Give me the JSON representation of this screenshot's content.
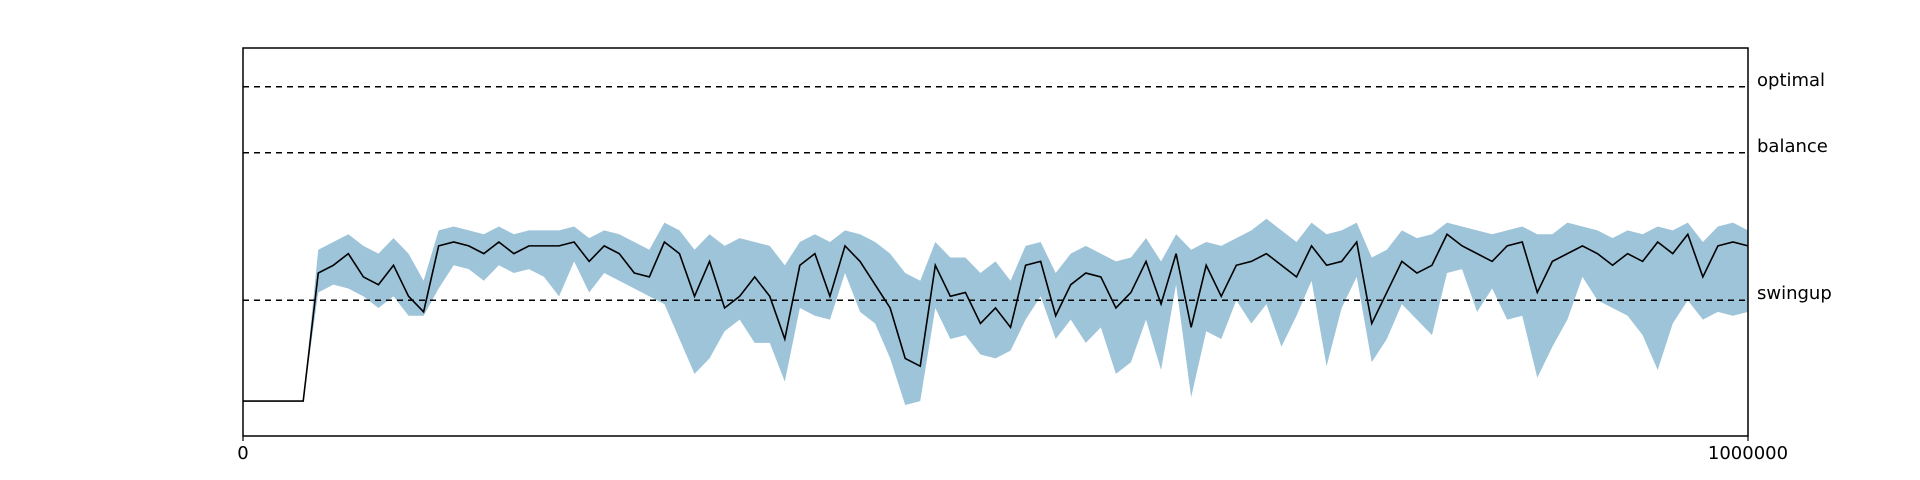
{
  "chart_data": {
    "type": "line",
    "x": [
      0,
      10000,
      20000,
      30000,
      40000,
      50000,
      60000,
      70000,
      80000,
      90000,
      100000,
      110000,
      120000,
      130000,
      140000,
      150000,
      160000,
      170000,
      180000,
      190000,
      200000,
      210000,
      220000,
      230000,
      240000,
      250000,
      260000,
      270000,
      280000,
      290000,
      300000,
      310000,
      320000,
      330000,
      340000,
      350000,
      360000,
      370000,
      380000,
      390000,
      400000,
      410000,
      420000,
      430000,
      440000,
      450000,
      460000,
      470000,
      480000,
      490000,
      500000,
      510000,
      520000,
      530000,
      540000,
      550000,
      560000,
      570000,
      580000,
      590000,
      600000,
      610000,
      620000,
      630000,
      640000,
      650000,
      660000,
      670000,
      680000,
      690000,
      700000,
      710000,
      720000,
      730000,
      740000,
      750000,
      760000,
      770000,
      780000,
      790000,
      800000,
      810000,
      820000,
      830000,
      840000,
      850000,
      860000,
      870000,
      880000,
      890000,
      900000,
      910000,
      920000,
      930000,
      940000,
      950000,
      960000,
      970000,
      980000,
      990000,
      1000000
    ],
    "series": [
      {
        "color": "#000000",
        "band_color": "#9ec4d9",
        "values": [
          0.09,
          0.09,
          0.09,
          0.09,
          0.09,
          0.42,
          0.44,
          0.47,
          0.41,
          0.39,
          0.44,
          0.36,
          0.32,
          0.49,
          0.5,
          0.49,
          0.47,
          0.5,
          0.47,
          0.49,
          0.49,
          0.49,
          0.5,
          0.45,
          0.49,
          0.47,
          0.42,
          0.41,
          0.5,
          0.47,
          0.36,
          0.45,
          0.33,
          0.36,
          0.41,
          0.36,
          0.25,
          0.44,
          0.47,
          0.36,
          0.49,
          0.45,
          0.39,
          0.33,
          0.2,
          0.18,
          0.44,
          0.36,
          0.37,
          0.29,
          0.33,
          0.28,
          0.44,
          0.45,
          0.31,
          0.39,
          0.42,
          0.41,
          0.33,
          0.37,
          0.45,
          0.34,
          0.47,
          0.28,
          0.44,
          0.36,
          0.44,
          0.45,
          0.47,
          0.44,
          0.41,
          0.49,
          0.44,
          0.45,
          0.5,
          0.29,
          0.37,
          0.45,
          0.42,
          0.44,
          0.52,
          0.49,
          0.47,
          0.45,
          0.49,
          0.5,
          0.37,
          0.45,
          0.47,
          0.49,
          0.47,
          0.44,
          0.47,
          0.45,
          0.5,
          0.47,
          0.52,
          0.41,
          0.49,
          0.5,
          0.49
        ],
        "upper": [
          0.09,
          0.09,
          0.09,
          0.09,
          0.09,
          0.48,
          0.5,
          0.52,
          0.49,
          0.47,
          0.51,
          0.47,
          0.4,
          0.53,
          0.54,
          0.53,
          0.52,
          0.54,
          0.52,
          0.53,
          0.53,
          0.53,
          0.54,
          0.51,
          0.53,
          0.52,
          0.5,
          0.48,
          0.55,
          0.53,
          0.48,
          0.52,
          0.49,
          0.51,
          0.5,
          0.49,
          0.44,
          0.5,
          0.52,
          0.5,
          0.53,
          0.52,
          0.5,
          0.47,
          0.42,
          0.4,
          0.5,
          0.46,
          0.46,
          0.42,
          0.45,
          0.4,
          0.49,
          0.5,
          0.42,
          0.47,
          0.49,
          0.47,
          0.45,
          0.46,
          0.51,
          0.45,
          0.52,
          0.48,
          0.5,
          0.49,
          0.51,
          0.53,
          0.56,
          0.53,
          0.5,
          0.55,
          0.52,
          0.53,
          0.55,
          0.46,
          0.48,
          0.53,
          0.51,
          0.52,
          0.55,
          0.54,
          0.53,
          0.52,
          0.53,
          0.54,
          0.52,
          0.52,
          0.55,
          0.54,
          0.53,
          0.51,
          0.53,
          0.52,
          0.54,
          0.53,
          0.55,
          0.5,
          0.54,
          0.55,
          0.53
        ],
        "lower": [
          0.09,
          0.09,
          0.09,
          0.09,
          0.09,
          0.37,
          0.39,
          0.38,
          0.36,
          0.33,
          0.36,
          0.31,
          0.31,
          0.38,
          0.44,
          0.43,
          0.4,
          0.44,
          0.42,
          0.43,
          0.41,
          0.36,
          0.45,
          0.37,
          0.42,
          0.4,
          0.38,
          0.36,
          0.34,
          0.25,
          0.16,
          0.2,
          0.27,
          0.3,
          0.24,
          0.24,
          0.14,
          0.33,
          0.31,
          0.3,
          0.42,
          0.32,
          0.29,
          0.2,
          0.08,
          0.09,
          0.33,
          0.25,
          0.26,
          0.21,
          0.2,
          0.22,
          0.3,
          0.36,
          0.25,
          0.3,
          0.24,
          0.28,
          0.16,
          0.19,
          0.3,
          0.17,
          0.39,
          0.1,
          0.27,
          0.25,
          0.35,
          0.29,
          0.34,
          0.23,
          0.31,
          0.4,
          0.18,
          0.33,
          0.41,
          0.19,
          0.25,
          0.34,
          0.3,
          0.26,
          0.42,
          0.43,
          0.32,
          0.38,
          0.3,
          0.31,
          0.15,
          0.23,
          0.3,
          0.41,
          0.35,
          0.33,
          0.31,
          0.26,
          0.17,
          0.29,
          0.35,
          0.3,
          0.32,
          0.31,
          0.32
        ]
      }
    ],
    "hlines": [
      {
        "label": "optimal",
        "value": 0.9
      },
      {
        "label": "balance",
        "value": 0.73
      },
      {
        "label": "swingup",
        "value": 0.35
      }
    ],
    "xlim": [
      0,
      1000000
    ],
    "xticks": [
      0,
      1000000
    ],
    "ylim": [
      0,
      1
    ]
  }
}
